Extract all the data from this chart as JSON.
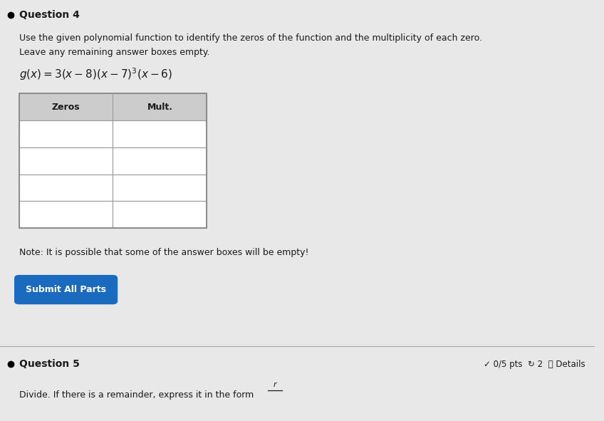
{
  "background_color": "#e8e8e8",
  "q4_label": "Question 4",
  "instruction_line1": "Use the given polynomial function to identify the zeros of the function and the multiplicity of each zero.",
  "instruction_line2": "Leave any remaining answer boxes empty.",
  "table_header_zeros": "Zeros",
  "table_header_mult": "Mult.",
  "num_rows": 4,
  "cell_bg": "#ffffff",
  "cell_border": "#999999",
  "header_bg": "#cccccc",
  "note_text": "Note: It is possible that some of the answer boxes will be empty!",
  "button_text": "Submit All Parts",
  "button_color": "#1a6bbf",
  "button_text_color": "#ffffff",
  "q5_label": "Question 5",
  "q5_score": "✓ 0/5 pts  ↻ 2  ⓘ Details",
  "q5_instruction": "Divide. If there is a remainder, express it in the form",
  "divider_color": "#aaaaaa",
  "font_size_label": 10,
  "font_size_instruction": 9,
  "font_size_function": 11,
  "font_size_table_header": 9,
  "font_size_note": 9,
  "font_size_button": 9,
  "font_size_q5": 10,
  "text_color": "#1a1a1a"
}
